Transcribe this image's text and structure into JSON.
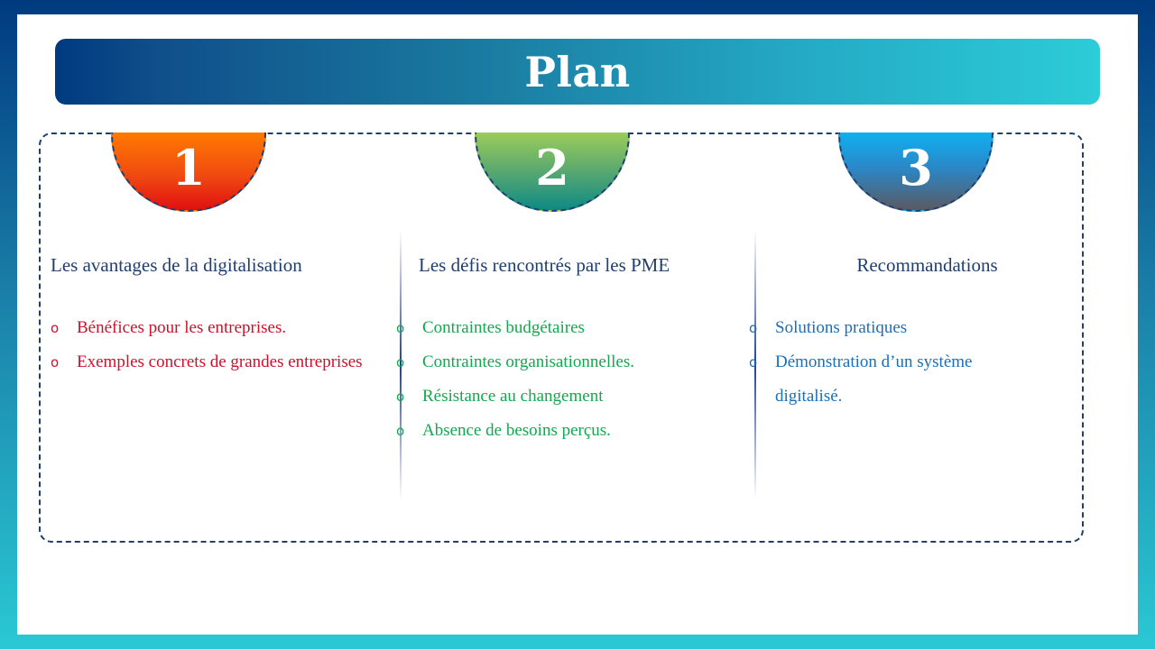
{
  "title": "Plan",
  "sections": [
    {
      "number": "1",
      "heading": "Les avantages de la digitalisation",
      "items": [
        "Bénéfices pour les entreprises.",
        "Exemples concrets de grandes entreprises"
      ]
    },
    {
      "number": "2",
      "heading": "Les défis rencontrés par les PME",
      "items": [
        "Contraintes budgétaires",
        "Contraintes organisationnelles.",
        "Résistance au changement",
        "Absence de besoins perçus."
      ]
    },
    {
      "number": "3",
      "heading": "Recommandations",
      "items": [
        "Solutions pratiques",
        "Démonstration d’un système digitalisé."
      ]
    }
  ],
  "bullet_symbol": "o",
  "colors": {
    "section1_text": "#d0102a",
    "section2_text": "#14a84e",
    "section3_text": "#1a6fb8",
    "heading_text": "#1f3f6e"
  }
}
